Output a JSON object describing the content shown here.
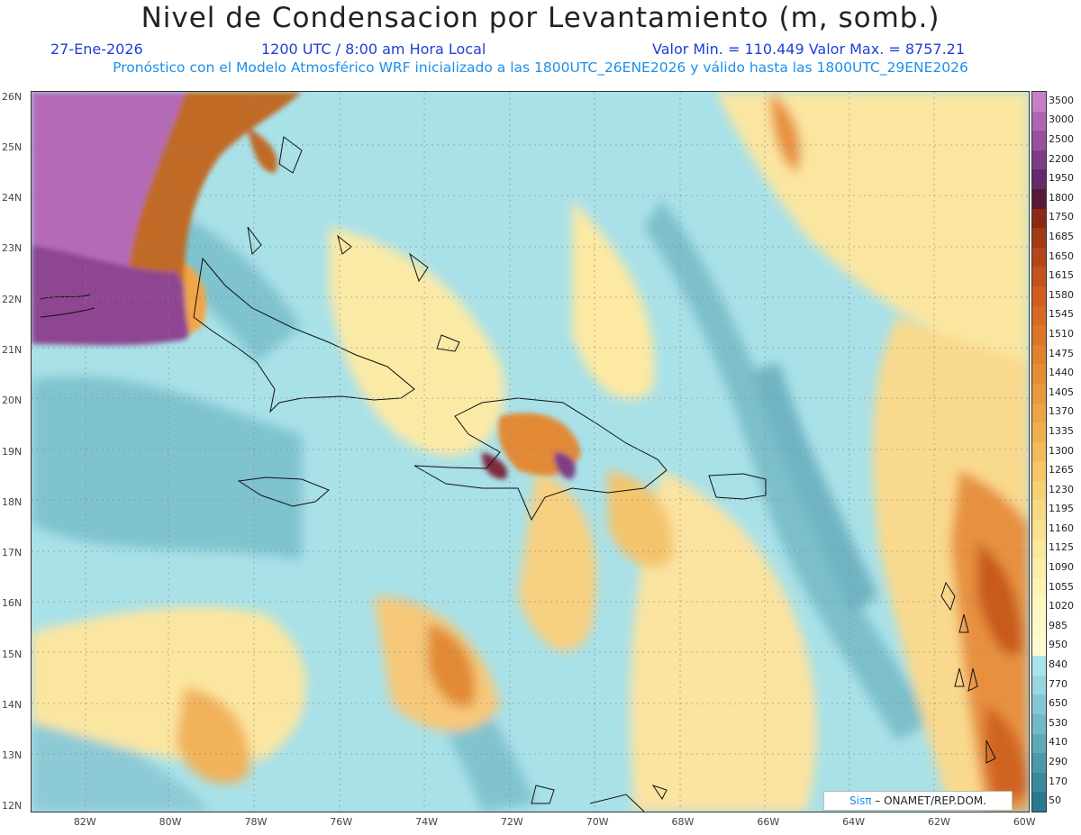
{
  "header": {
    "title": "Nivel de Condensacion por Levantamiento (m, somb.)",
    "date": "27-Ene-2026",
    "time": "1200 UTC / 8:00 am Hora Local",
    "minmax": "Valor Min. = 110.449   Valor Max. = 8757.21",
    "forecast": "Pronóstico con el Modelo Atmosférico WRF inicializado a las 1800UTC_26ENE2026 y válido hasta las  1800UTC_29ENE2026"
  },
  "lat_ticks": [
    "26N",
    "25N",
    "24N",
    "23N",
    "22N",
    "21N",
    "20N",
    "19N",
    "18N",
    "17N",
    "16N",
    "15N",
    "14N",
    "13N",
    "12N"
  ],
  "lon_ticks": [
    "82W",
    "80W",
    "78W",
    "76W",
    "74W",
    "72W",
    "70W",
    "68W",
    "66W",
    "64W",
    "62W",
    "60W"
  ],
  "map_extent": {
    "lon_min": -83.25,
    "lon_max": -59.9,
    "lat_min": 11.9,
    "lat_max": 26.1
  },
  "colorbar": {
    "labels": [
      "3500",
      "3000",
      "2500",
      "2200",
      "1950",
      "1800",
      "1750",
      "1685",
      "1650",
      "1615",
      "1580",
      "1545",
      "1510",
      "1475",
      "1440",
      "1405",
      "1370",
      "1335",
      "1300",
      "1265",
      "1230",
      "1195",
      "1160",
      "1125",
      "1090",
      "1055",
      "1020",
      "985",
      "950",
      "840",
      "770",
      "650",
      "530",
      "410",
      "290",
      "170",
      "50"
    ],
    "colors": [
      "#c77fc8",
      "#b065b3",
      "#98509d",
      "#7e3c86",
      "#66296b",
      "#561a38",
      "#8a2a14",
      "#a33a16",
      "#b4461a",
      "#c4521c",
      "#cf5e20",
      "#d66a24",
      "#dc7628",
      "#e1822e",
      "#e58d35",
      "#e8983d",
      "#eca446",
      "#efb050",
      "#f2bb5b",
      "#f4c667",
      "#f6d074",
      "#f8d981",
      "#f9e18e",
      "#fae89b",
      "#fbeea8",
      "#fcf3b4",
      "#fdf7c0",
      "#fdf9c8",
      "#fefbd0",
      "#a9e3ea",
      "#98d6e0",
      "#85c8d4",
      "#72b9c7",
      "#5eaab9",
      "#4b9aab",
      "#3a8a9c",
      "#2a7a8d"
    ]
  },
  "credit": {
    "brand": "Sisπ",
    "org": " – ONAMET/REP.DOM."
  }
}
